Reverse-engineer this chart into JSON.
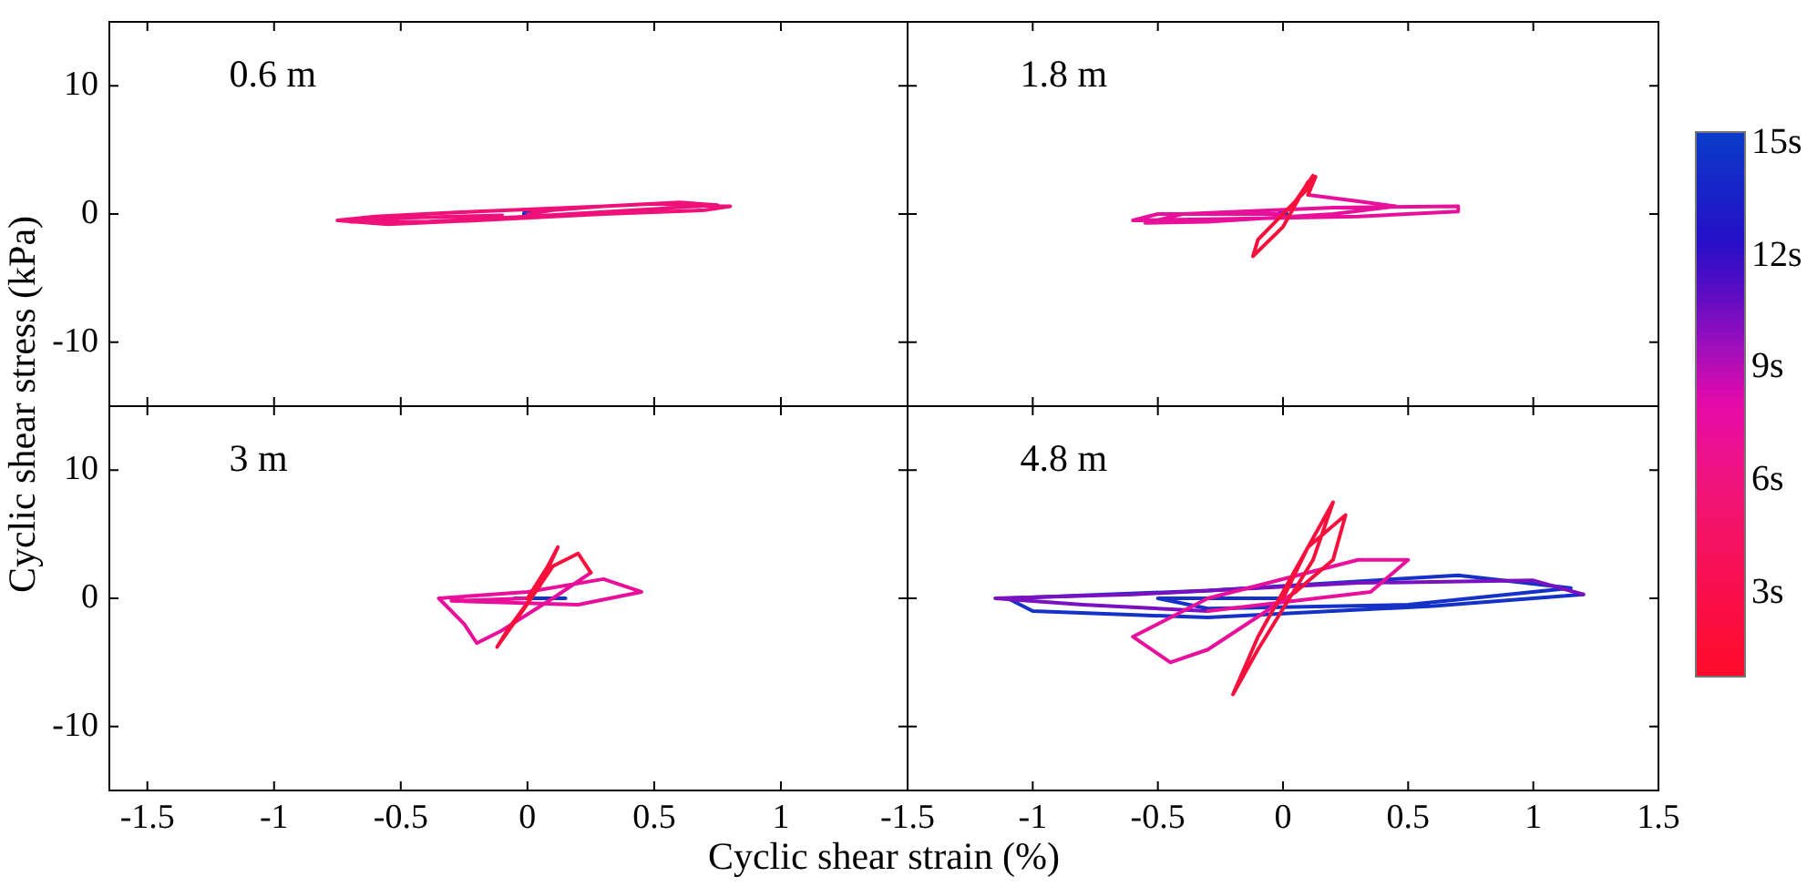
{
  "chart_data": [
    {
      "type": "line",
      "title": "0.6 m",
      "ylabel": "Cyclic shear stress (kPa)",
      "xlim": [
        -1.65,
        1.5
      ],
      "xticks": [
        -1.5,
        -1,
        -0.5,
        0,
        0.5,
        1,
        1.5
      ],
      "ylim": [
        -15,
        15
      ],
      "yticks": [
        -10,
        0,
        10
      ],
      "tick_labels": "y",
      "legend": false,
      "series": [
        {
          "color": "#f0107a",
          "x": [
            0,
            0.1,
            0.3,
            0.5,
            0.8,
            0.7,
            0.3,
            -0.2,
            -0.55,
            -0.75,
            -0.6,
            -0.2,
            0.3,
            0.6,
            0.75,
            0.5,
            0,
            -0.4,
            -0.7,
            -0.5,
            -0.1
          ],
          "values": [
            0,
            0.3,
            0.6,
            0.8,
            0.6,
            0.3,
            0,
            -0.5,
            -0.8,
            -0.5,
            -0.2,
            0.2,
            0.6,
            0.9,
            0.7,
            0.4,
            -0.2,
            -0.6,
            -0.6,
            -0.3,
            -0.1
          ]
        },
        {
          "type": "scatter",
          "marker": "circle",
          "color": "#1432c8",
          "x": [
            0
          ],
          "values": [
            0
          ]
        }
      ]
    },
    {
      "type": "line",
      "title": "1.8 m",
      "xlim": [
        -1.5,
        1.5
      ],
      "xticks": [
        -1.5,
        -1,
        -0.5,
        0,
        0.5,
        1,
        1.5
      ],
      "ylim": [
        -15,
        15
      ],
      "yticks": [
        -10,
        0,
        10
      ],
      "tick_labels": false,
      "legend": false,
      "series": [
        {
          "color": "#f8103c",
          "x": [
            0,
            0.1,
            0.12,
            0.05,
            -0.1,
            -0.12,
            0,
            0.1,
            0.13,
            0.1
          ],
          "values": [
            0,
            2,
            3,
            1,
            -2,
            -3.3,
            -1,
            2.5,
            2.9,
            1.5
          ]
        },
        {
          "color": "#e8109a",
          "x": [
            0.1,
            0.3,
            0.45,
            0.2,
            -0.3,
            -0.55,
            -0.4,
            0.2,
            0.7,
            0.7,
            0.3,
            -0.3,
            -0.6,
            -0.5,
            0
          ],
          "values": [
            1.5,
            1,
            0.6,
            0,
            -0.6,
            -0.7,
            0,
            0.5,
            0.6,
            0.2,
            -0.2,
            -0.4,
            -0.5,
            0,
            0
          ]
        },
        {
          "type": "scatter",
          "marker": "circle",
          "color": "#1432c8",
          "x": [
            0
          ],
          "values": [
            0
          ]
        }
      ]
    },
    {
      "type": "line",
      "title": "3 m",
      "xlabel": "Cyclic shear strain (%)",
      "xlim": [
        -1.65,
        1.5
      ],
      "xticks": [
        -1.5,
        -1,
        -0.5,
        0,
        0.5,
        1
      ],
      "ylim": [
        -15,
        15
      ],
      "yticks": [
        -10,
        0,
        10
      ],
      "legend": false,
      "series": [
        {
          "color": "#f8103c",
          "x": [
            0,
            0.08,
            0.12,
            0.05,
            -0.08,
            -0.12,
            -0.02,
            0.1,
            0.2,
            0.25
          ],
          "values": [
            0,
            2.5,
            4,
            1,
            -2.5,
            -3.8,
            -1,
            2.5,
            3.5,
            2
          ]
        },
        {
          "color": "#e8109a",
          "x": [
            0.25,
            0.1,
            -0.1,
            -0.2,
            -0.25,
            -0.35,
            0,
            0.3,
            0.45,
            0.2,
            -0.3,
            0
          ],
          "values": [
            2,
            0,
            -2.5,
            -3.5,
            -2,
            0,
            0.5,
            1.5,
            0.5,
            -0.5,
            -0.2,
            0
          ]
        },
        {
          "color": "#1432c8",
          "x": [
            -0.05,
            0.15
          ],
          "values": [
            0,
            0
          ]
        }
      ]
    },
    {
      "type": "line",
      "title": "4.8 m",
      "xlim": [
        -1.5,
        1.5
      ],
      "xticks": [
        -1.5,
        -1,
        -0.5,
        0,
        0.5,
        1,
        1.5
      ],
      "ylim": [
        -15,
        15
      ],
      "yticks": [
        -10,
        0,
        10
      ],
      "tick_labels": "x",
      "legend": false,
      "clim": [
        0.7,
        15.3
      ],
      "cticks": [
        {
          "value": 3,
          "label": "3s"
        },
        {
          "value": 6,
          "label": "6s"
        },
        {
          "value": 9,
          "label": "9s"
        },
        {
          "value": 12,
          "label": "12s"
        },
        {
          "value": 15,
          "label": "15s"
        }
      ],
      "series": [
        {
          "color": "#f8103c",
          "x": [
            0,
            0.1,
            0.2,
            0.12,
            -0.1,
            -0.2,
            -0.1,
            0.1,
            0.25,
            0.2,
            0.05
          ],
          "values": [
            0,
            4,
            7.5,
            3,
            -4,
            -7.5,
            -3,
            4,
            6.5,
            3,
            0.5
          ]
        },
        {
          "color": "#e8109a",
          "x": [
            0.05,
            -0.3,
            -0.45,
            -0.6,
            -0.3,
            0.3,
            0.5,
            0.35,
            -0.3
          ],
          "values": [
            0.5,
            -4,
            -5,
            -3,
            0,
            3,
            3,
            0.5,
            -1
          ]
        },
        {
          "color": "#7a10c0",
          "x": [
            -0.3,
            -0.8,
            -1.15,
            -0.6,
            0.3,
            1,
            1.2
          ],
          "values": [
            -1,
            -0.5,
            0,
            0.3,
            1.2,
            1.4,
            0.3
          ]
        },
        {
          "color": "#1432c8",
          "x": [
            1.2,
            0.6,
            -0.3,
            -1,
            -1.1,
            -0.3,
            0.7,
            1.15,
            0.5,
            -0.3,
            -0.5,
            0
          ],
          "values": [
            0.3,
            -0.6,
            -1.5,
            -1,
            0,
            0.6,
            1.8,
            0.8,
            -0.5,
            -0.8,
            0,
            0
          ]
        }
      ]
    }
  ]
}
